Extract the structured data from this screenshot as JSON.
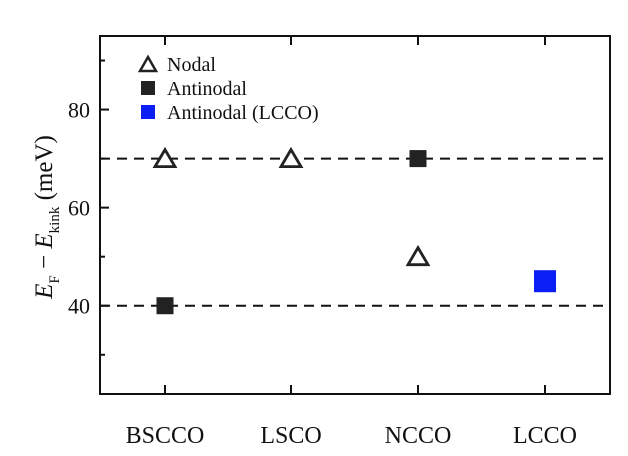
{
  "chart_data": {
    "type": "scatter",
    "categories": [
      "BSCCO",
      "LSCO",
      "NCCO",
      "LCCO"
    ],
    "ylabel": {
      "var1": "E",
      "sub1": "F",
      "minus": " − ",
      "var2": "E",
      "sub2": "kink",
      "unit": " (meV)"
    },
    "ylim": [
      22,
      95
    ],
    "yticks": [
      40,
      60,
      80
    ],
    "grid": false,
    "legend_position": "top-left",
    "series": [
      {
        "name": "Nodal",
        "marker": "open-triangle",
        "color": "#222222",
        "points": [
          {
            "category": "BSCCO",
            "value": 70
          },
          {
            "category": "LSCO",
            "value": 70
          },
          {
            "category": "NCCO",
            "value": 50
          }
        ]
      },
      {
        "name": "Antinodal",
        "marker": "filled-square",
        "color": "#222222",
        "points": [
          {
            "category": "BSCCO",
            "value": 40
          },
          {
            "category": "NCCO",
            "value": 70
          }
        ]
      },
      {
        "name": "Antinodal (LCCO)",
        "marker": "filled-square",
        "color": "#0a1ef5",
        "points": [
          {
            "category": "LCCO",
            "value": 45
          }
        ]
      }
    ],
    "reference_lines": [
      {
        "value": 70,
        "style": "dashed"
      },
      {
        "value": 40,
        "style": "dashed"
      }
    ]
  }
}
